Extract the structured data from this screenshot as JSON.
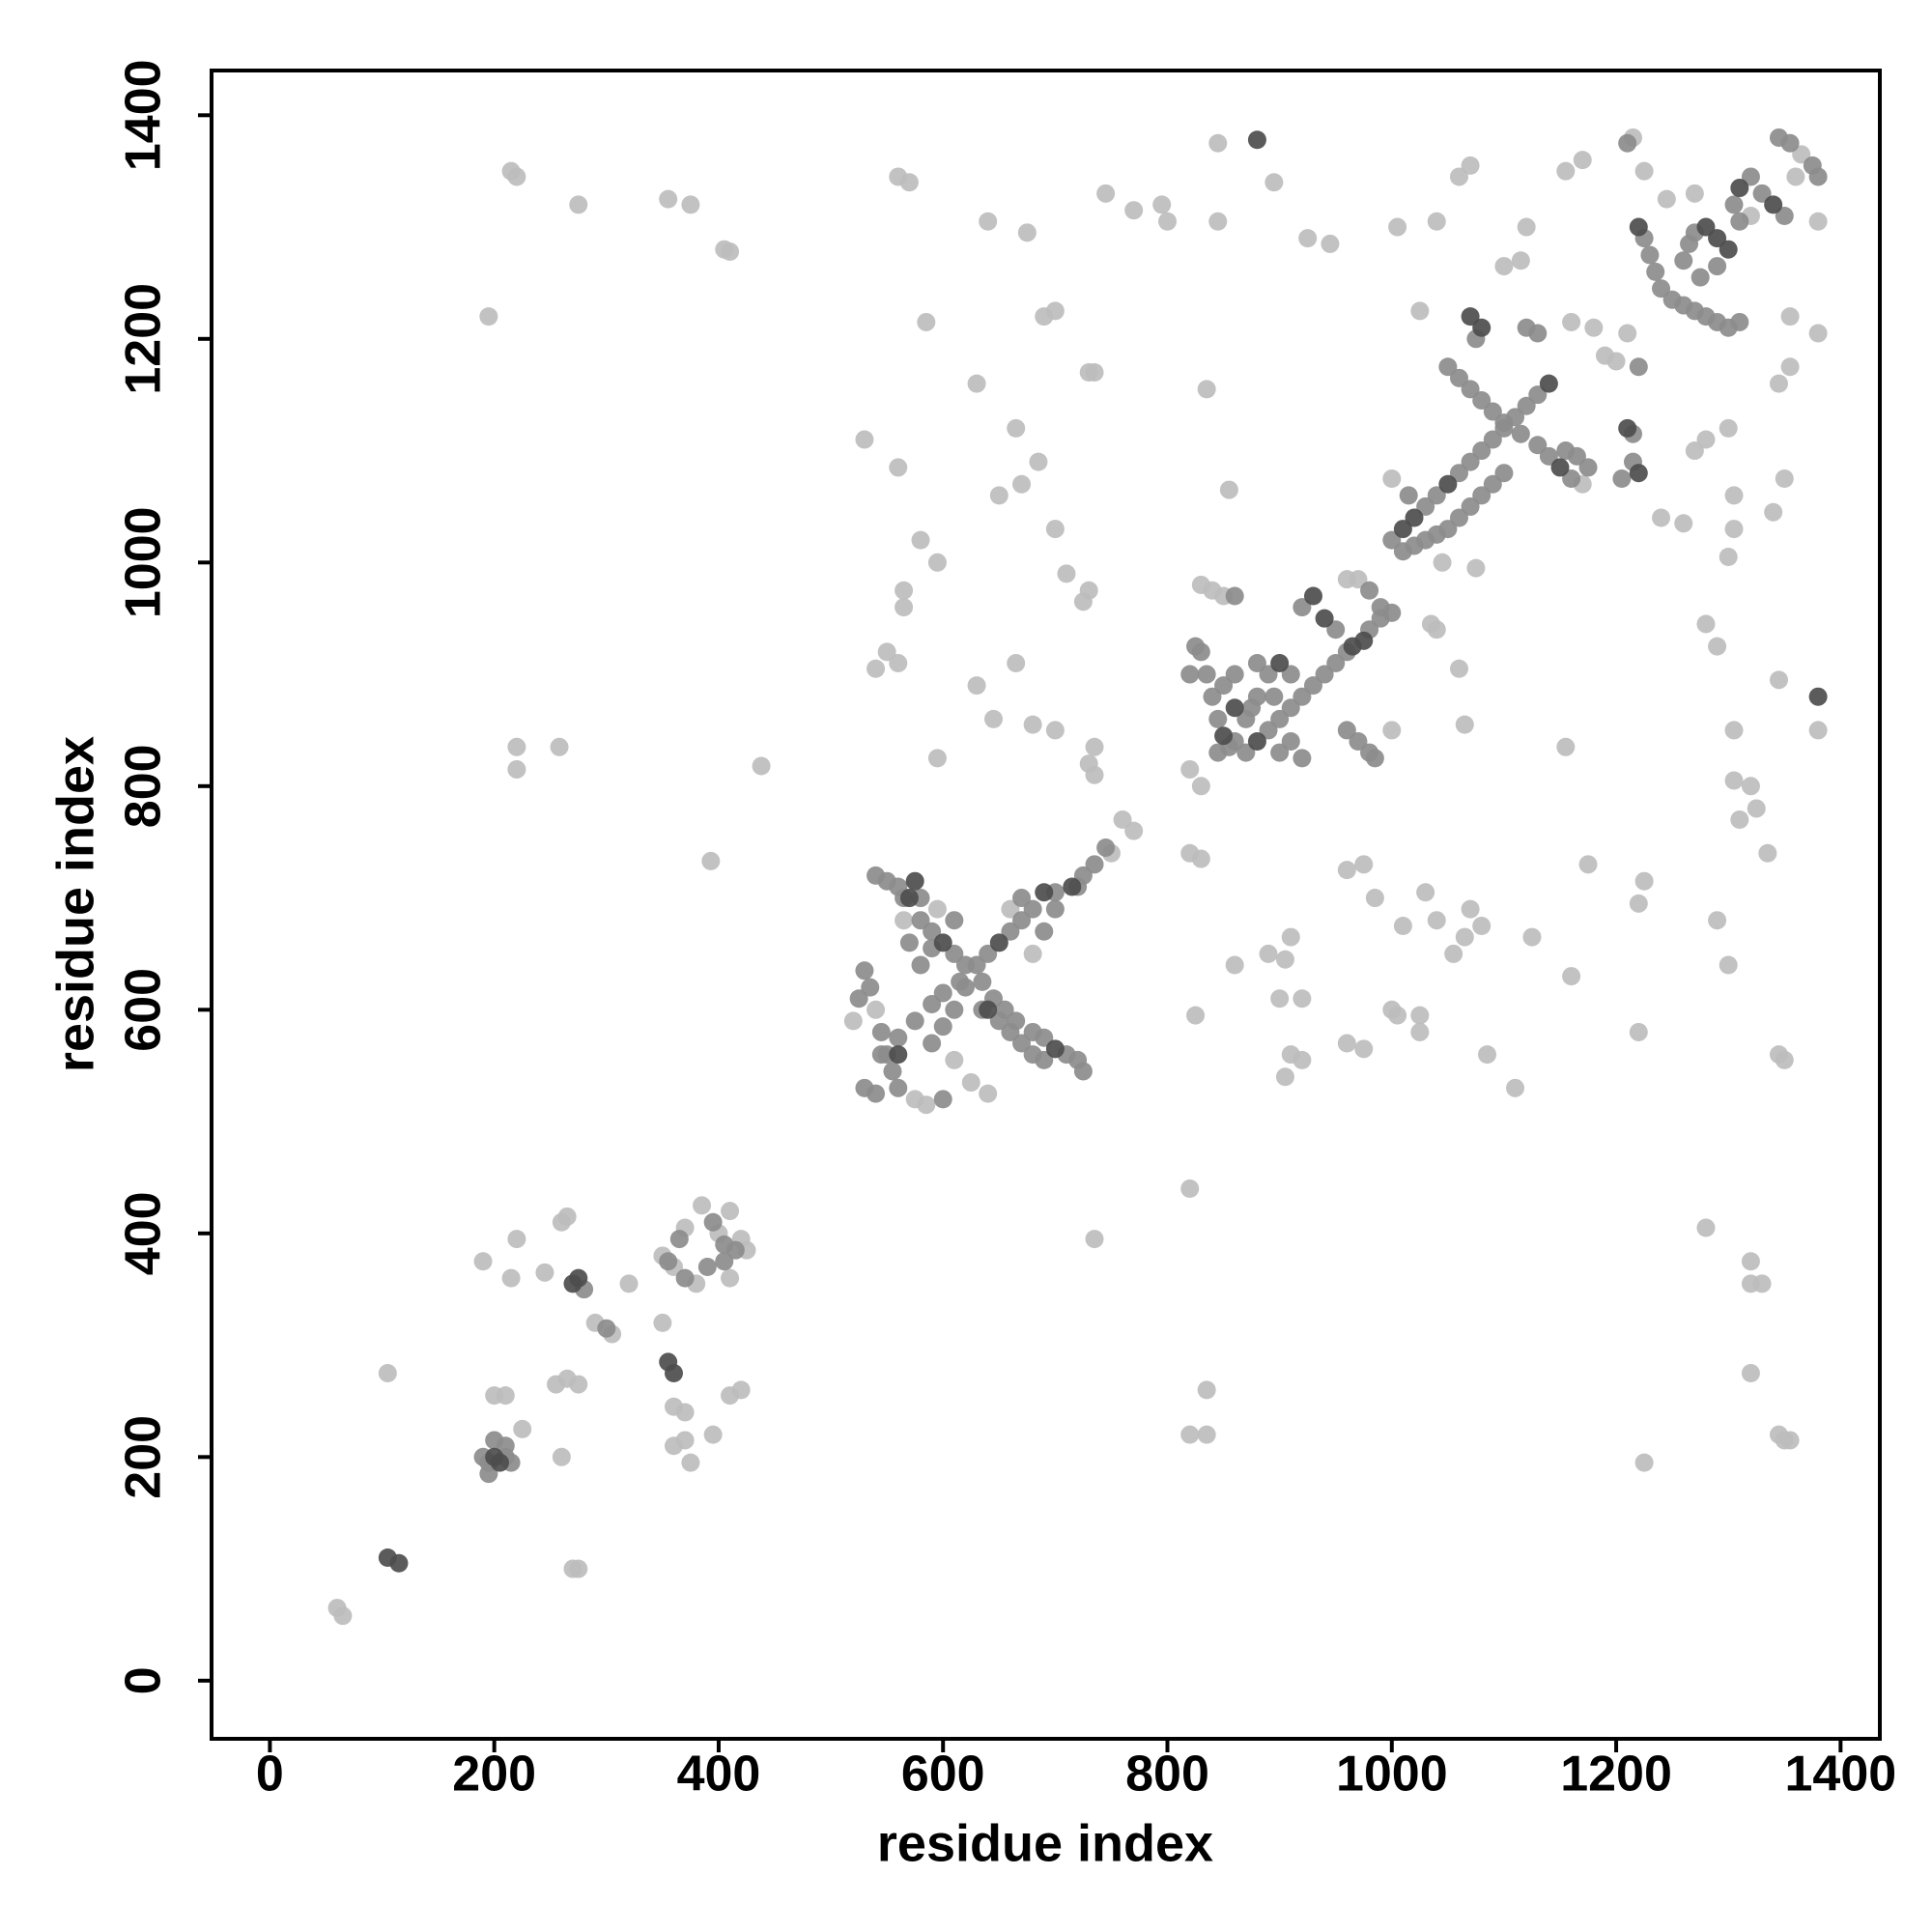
{
  "chart_data": {
    "type": "scatter",
    "xlabel": "residue index",
    "ylabel": "residue index",
    "xlim": [
      -52,
      1435
    ],
    "ylim": [
      -52,
      1440
    ],
    "xticks": [
      0,
      200,
      400,
      600,
      800,
      1000,
      1200,
      1400
    ],
    "yticks": [
      0,
      200,
      400,
      600,
      800,
      1000,
      1200,
      1400
    ],
    "series": [
      {
        "color": "#bdbdbd",
        "x": [
          60,
          65,
          105,
          215,
          220,
          195,
          275,
          355,
          375,
          405,
          410,
          220,
          220,
          258,
          438,
          393,
          585,
          560,
          570,
          640,
          675,
          745,
          735,
          690,
          700,
          770,
          795,
          800,
          845,
          845,
          835,
          855,
          895,
          925,
          945,
          1005,
          1025,
          1040,
          1060,
          1070,
          1120,
          1100,
          1115,
          530,
          560,
          630,
          580,
          595,
          565,
          565,
          540,
          550,
          560,
          595,
          645,
          630,
          665,
          665,
          650,
          670,
          685,
          700,
          710,
          730,
          750,
          760,
          770,
          735,
          820,
          820,
          835,
          835,
          825,
          860,
          890,
          900,
          905,
          910,
          920,
          920,
          910,
          905,
          960,
          975,
          985,
          1000,
          1005,
          1025,
          1025,
          1040,
          1055,
          1065,
          1080,
          1085,
          1110,
          1125,
          1160,
          1175,
          1155,
          1220,
          1220,
          1225,
          1225,
          1280,
          1320,
          1320,
          1320,
          1330,
          1345,
          1350,
          1345,
          1350,
          1355,
          1300,
          1290,
          1320,
          1305,
          1325,
          1310,
          1335,
          1305,
          1300,
          1305,
          1380,
          1345,
          1280,
          1290,
          1340,
          1350,
          1240,
          1260,
          1270,
          1280,
          1300,
          1305,
          1345,
          1355,
          1355,
          1380,
          1380,
          1160,
          1155,
          1170,
          1215,
          1225,
          190,
          215,
          220,
          245,
          260,
          265,
          290,
          305,
          320,
          350,
          360,
          370,
          370,
          360,
          375,
          395,
          410,
          420,
          255,
          265,
          275,
          260,
          200,
          210,
          225,
          270,
          275,
          350,
          360,
          370,
          385,
          400,
          410,
          420,
          425,
          410,
          380,
          540,
          520,
          575,
          585,
          640,
          625,
          610,
          595,
          565,
          680,
          660,
          830,
          840,
          850,
          960,
          970,
          820,
          830,
          820,
          830,
          730,
          735,
          1000,
          1045,
          1075,
          1040,
          1035,
          1180,
          1190,
          1200,
          1210,
          1170,
          1245,
          1270,
          1360,
          1365,
          1320,
          1060,
          1065,
          1000,
          960,
          975,
          1030,
          1010,
          1070,
          725,
          730,
          700,
          680,
          735
        ],
        "values": [
          65,
          58,
          275,
          1350,
          1345,
          1220,
          1320,
          1325,
          1320,
          1280,
          1278,
          835,
          815,
          835,
          818,
          733,
          1215,
          1345,
          1340,
          1305,
          1295,
          1330,
          1170,
          1220,
          1225,
          1315,
          1320,
          1305,
          1375,
          1305,
          1155,
          1065,
          1340,
          1290,
          1285,
          1300,
          1225,
          1305,
          1345,
          1355,
          1300,
          1265,
          1270,
          1110,
          1085,
          1160,
          1020,
          1000,
          975,
          960,
          905,
          920,
          910,
          825,
          860,
          890,
          910,
          1120,
          1060,
          1070,
          1090,
          1030,
          990,
          1170,
          740,
          770,
          760,
          395,
          440,
          220,
          220,
          260,
          595,
          640,
          650,
          610,
          540,
          560,
          555,
          610,
          665,
          645,
          570,
          565,
          700,
          600,
          595,
          595,
          580,
          680,
          650,
          665,
          675,
          560,
          530,
          665,
          630,
          730,
          835,
          580,
          695,
          715,
          195,
          405,
          275,
          375,
          355,
          355,
          560,
          555,
          220,
          215,
          215,
          640,
          680,
          800,
          805,
          780,
          770,
          740,
          850,
          1005,
          1030,
          850,
          895,
          945,
          925,
          1045,
          1075,
          1040,
          1035,
          1100,
          1110,
          1120,
          1060,
          1160,
          1175,
          1220,
          1205,
          1305,
          1215,
          1350,
          1360,
          1380,
          1350,
          375,
          360,
          395,
          365,
          410,
          415,
          320,
          310,
          355,
          320,
          245,
          240,
          215,
          210,
          195,
          220,
          255,
          260,
          265,
          270,
          265,
          200,
          255,
          255,
          225,
          100,
          100,
          380,
          370,
          405,
          425,
          400,
          420,
          395,
          385,
          360,
          355,
          600,
          590,
          520,
          515,
          525,
          535,
          555,
          690,
          680,
          650,
          690,
          980,
          975,
          970,
          985,
          985,
          815,
          800,
          740,
          735,
          820,
          835,
          1075,
          1000,
          995,
          940,
          945,
          1210,
          1185,
          1180,
          1205,
          1070,
          1325,
          1330,
          1345,
          1365,
          1310,
          905,
          855,
          850,
          725,
          730,
          705,
          675,
          690,
          965,
          975,
          850,
          855,
          810
        ]
      },
      {
        "color": "#8c8c8c",
        "x": [
          545,
          560,
          575,
          590,
          600,
          615,
          630,
          640,
          660,
          670,
          680,
          700,
          720,
          725,
          735,
          745,
          540,
          550,
          560,
          565,
          580,
          590,
          610,
          620,
          635,
          645,
          655,
          665,
          680,
          690,
          710,
          720,
          725,
          525,
          530,
          535,
          545,
          550,
          555,
          560,
          530,
          540,
          600,
          590,
          600,
          610,
          620,
          635,
          650,
          660,
          670,
          680,
          690,
          580,
          590,
          610,
          580,
          570,
          690,
          700,
          670,
          820,
          825,
          830,
          835,
          840,
          845,
          860,
          870,
          890,
          900,
          910,
          920,
          930,
          940,
          950,
          960,
          980,
          990,
          1000,
          920,
          950,
          980,
          990,
          860,
          870,
          880,
          890,
          910,
          880,
          860,
          850,
          845,
          855,
          900,
          910,
          920,
          960,
          970,
          980,
          985,
          875,
          895,
          1000,
          1030,
          1040,
          1060,
          1070,
          1080,
          1090,
          1100,
          1110,
          1120,
          1130,
          1010,
          1020,
          1030,
          1040,
          1050,
          1060,
          1070,
          1080,
          1090,
          1100,
          1015,
          1050,
          1060,
          1070,
          1080,
          1090,
          1100,
          1115,
          1130,
          1140,
          1160,
          1075,
          1120,
          1130,
          1220,
          1215,
          1205,
          1215,
          1155,
          1165,
          1175,
          1225,
          1230,
          1235,
          1240,
          1250,
          1260,
          1270,
          1280,
          1290,
          1300,
          1310,
          1260,
          1265,
          1270,
          1290,
          1275,
          1305,
          1320,
          1330,
          1350,
          1310,
          1345,
          1355,
          1375,
          1380,
          1210,
          190,
          195,
          210,
          215,
          200,
          210,
          195,
          280,
          300,
          355,
          370,
          365,
          395,
          405,
          415,
          405,
          390
        ],
        "values": [
          560,
          575,
          590,
          605,
          615,
          625,
          640,
          650,
          670,
          680,
          690,
          705,
          710,
          720,
          730,
          745,
          720,
          715,
          710,
          700,
          680,
          670,
          650,
          640,
          625,
          610,
          600,
          590,
          580,
          575,
          560,
          555,
          545,
          610,
          635,
          620,
          580,
          560,
          545,
          530,
          530,
          525,
          520,
          570,
          585,
          600,
          620,
          600,
          590,
          580,
          570,
          560,
          555,
          640,
          655,
          680,
          700,
          660,
          670,
          690,
          700,
          900,
          925,
          920,
          900,
          880,
          860,
          840,
          830,
          850,
          860,
          870,
          880,
          890,
          900,
          910,
          920,
          940,
          950,
          955,
          960,
          940,
          975,
          960,
          970,
          860,
          880,
          900,
          900,
          910,
          900,
          890,
          830,
          835,
          830,
          840,
          825,
          850,
          840,
          830,
          825,
          870,
          880,
          1020,
          1050,
          1060,
          1080,
          1090,
          1100,
          1110,
          1120,
          1130,
          1140,
          1150,
          1010,
          1015,
          1020,
          1025,
          1030,
          1040,
          1050,
          1060,
          1070,
          1080,
          1060,
          1175,
          1165,
          1155,
          1145,
          1135,
          1125,
          1115,
          1105,
          1095,
          1075,
          1200,
          1210,
          1205,
          1175,
          1115,
          1075,
          1090,
          1100,
          1095,
          1085,
          1290,
          1275,
          1260,
          1245,
          1235,
          1230,
          1225,
          1220,
          1215,
          1210,
          1215,
          1270,
          1285,
          1295,
          1265,
          1255,
          1320,
          1345,
          1330,
          1310,
          1305,
          1380,
          1375,
          1355,
          1345,
          1375,
          200,
          195,
          200,
          195,
          215,
          210,
          185,
          350,
          315,
          375,
          360,
          395,
          410,
          390,
          385,
          375,
          370
        ]
      },
      {
        "color": "#4d4d4d",
        "x": [
          880,
          1380,
          105,
          115,
          275,
          270,
          355,
          360,
          200,
          205,
          560,
          570,
          575,
          690,
          715,
          640,
          600,
          850,
          860,
          900,
          930,
          940,
          965,
          975,
          1070,
          1080,
          1140,
          1150,
          1210,
          1220,
          1280,
          1290,
          1300,
          1340,
          1310,
          1010,
          1050,
          1220,
          1020,
          880,
          650,
          700
        ],
        "values": [
          1378,
          880,
          110,
          105,
          360,
          355,
          285,
          275,
          200,
          195,
          560,
          700,
          715,
          705,
          710,
          600,
          660,
          845,
          870,
          910,
          970,
          950,
          925,
          930,
          1220,
          1210,
          1160,
          1085,
          1120,
          1080,
          1300,
          1290,
          1280,
          1320,
          1335,
          1030,
          1070,
          1300,
          1040,
          840,
          660,
          565
        ]
      }
    ]
  }
}
